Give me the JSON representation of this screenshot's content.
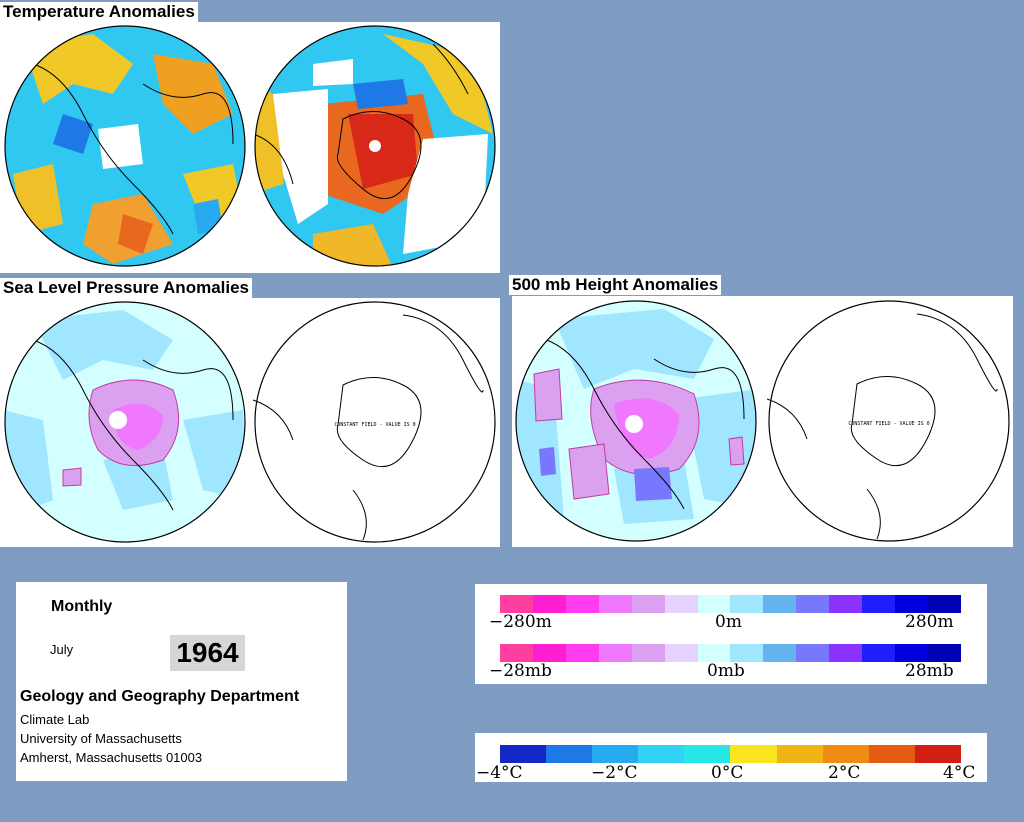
{
  "sections": {
    "temperature": {
      "title": "Temperature Anomalies"
    },
    "slp": {
      "title": "Sea Level Pressure Anomalies",
      "constant_field_note": "CONSTANT FIELD - VALUE IS 0"
    },
    "height500": {
      "title": "500 mb Height Anomalies",
      "constant_field_note": "CONSTANT FIELD - VALUE IS 0"
    }
  },
  "info": {
    "period": "Monthly",
    "month": "July",
    "year": "1964",
    "department": "Geology and Geography Department",
    "lab": "Climate Lab",
    "university": "University of Massachusetts",
    "address": "Amherst, Massachusetts 01003"
  },
  "legends": {
    "height": {
      "min": "−280m",
      "mid": "0m",
      "max": "280m"
    },
    "pressure": {
      "min": "−28mb",
      "mid": "0mb",
      "max": "28mb"
    },
    "temperature": {
      "l1": "−4°C",
      "l2": "−2°C",
      "l3": "0°C",
      "l4": "2°C",
      "l5": "4°C"
    }
  },
  "colors": {
    "background": "#7f9cc3",
    "anomaly_scale": [
      "#ff3fa0",
      "#ff1ed2",
      "#ff3cf0",
      "#f078ff",
      "#dca0f0",
      "#e6d2ff",
      "#d4ffff",
      "#a0e6ff",
      "#64b4f0",
      "#7878ff",
      "#8c32ff",
      "#1e1eff",
      "#0000dc",
      "#0000b4"
    ],
    "temperature_scale": [
      "#1428c8",
      "#1e78e6",
      "#28aaf0",
      "#32d2f5",
      "#28e6e6",
      "#fae61e",
      "#f0b414",
      "#f08c14",
      "#e65a14",
      "#d21e14"
    ]
  }
}
